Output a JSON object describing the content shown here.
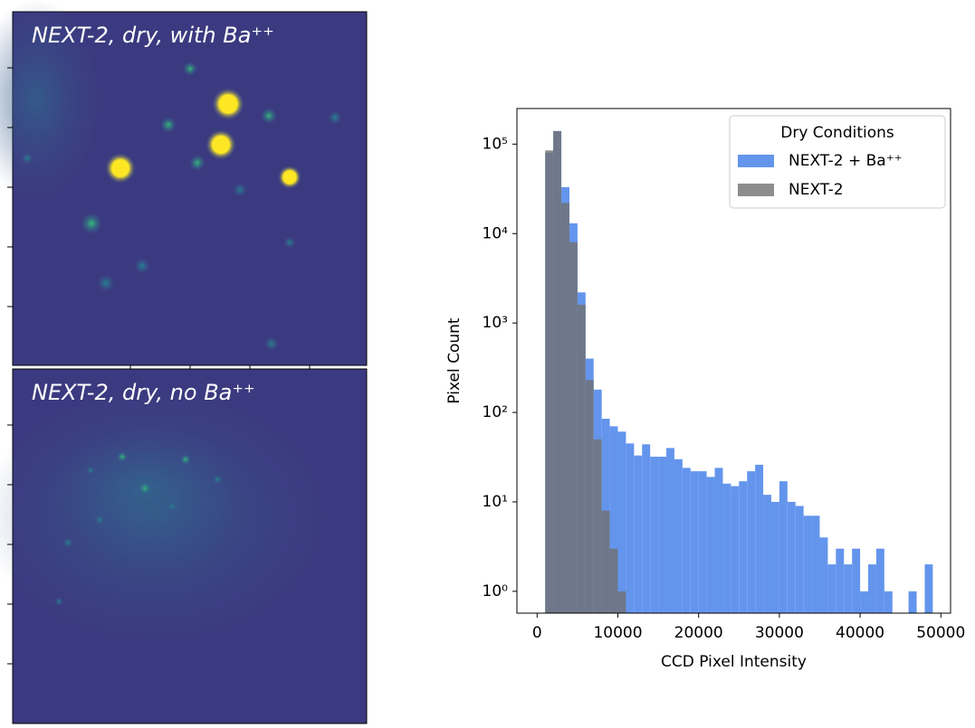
{
  "images": [
    {
      "label": "NEXT-2, dry, with Ba⁺⁺"
    },
    {
      "label": "NEXT-2, dry, no Ba⁺⁺"
    }
  ],
  "chart_data": {
    "type": "histogram",
    "xlabel": "CCD Pixel Intensity",
    "ylabel": "Pixel Count",
    "legend_title": "Dry Conditions",
    "legend": "upper right",
    "yscale": "log",
    "alpha": 0.8,
    "bins": [
      1000,
      2000,
      3000,
      4000,
      5000,
      6000,
      7000,
      8000,
      9000,
      10000,
      11000,
      12000,
      13000,
      14000,
      15000,
      16000,
      17000,
      18000,
      19000,
      20000,
      21000,
      22000,
      23000,
      24000,
      25000,
      26000,
      27000,
      28000,
      29000,
      30000,
      31000,
      32000,
      33000,
      34000,
      35000,
      36000,
      37000,
      38000,
      39000,
      40000,
      41000,
      42000,
      43000,
      44000,
      45000,
      46000,
      47000,
      48000,
      49000
    ],
    "series": [
      {
        "name": "NEXT-2 + Ba⁺⁺",
        "color": "#6495ed",
        "values": [
          80000,
          140000,
          33000,
          13000,
          2200,
          400,
          180,
          85,
          70,
          61,
          45,
          33,
          44,
          32,
          32,
          40,
          30,
          24,
          22,
          22,
          19,
          24,
          16,
          15,
          17,
          22,
          26,
          12,
          10,
          17,
          10,
          9,
          7,
          7,
          4,
          2,
          3,
          2,
          3,
          1,
          2,
          3,
          1,
          0,
          0,
          1,
          0,
          2
        ]
      },
      {
        "name": "NEXT-2",
        "color": "#707070",
        "values": [
          85000,
          140000,
          22000,
          8000,
          1600,
          230,
          50,
          8,
          3,
          1,
          0,
          0,
          0,
          0,
          0,
          0,
          0,
          0,
          0,
          0,
          0,
          0,
          0,
          0,
          0,
          0,
          0,
          0,
          0,
          0,
          0,
          0,
          0,
          0,
          0,
          0,
          0,
          0,
          0,
          0,
          0,
          0,
          0,
          0,
          0,
          0,
          0,
          0
        ]
      }
    ],
    "xlim": [
      -2500,
      51200
    ],
    "xticks": [
      0,
      10000,
      20000,
      30000,
      40000,
      50000
    ],
    "ylim": [
      0.57,
      250000
    ],
    "yticks": [
      {
        "value": 1,
        "label": "10⁰"
      },
      {
        "value": 10,
        "label": "10¹"
      },
      {
        "value": 100,
        "label": "10²"
      },
      {
        "value": 1000,
        "label": "10³"
      },
      {
        "value": 10000,
        "label": "10⁴"
      },
      {
        "value": 100000,
        "label": "10⁵"
      }
    ]
  }
}
